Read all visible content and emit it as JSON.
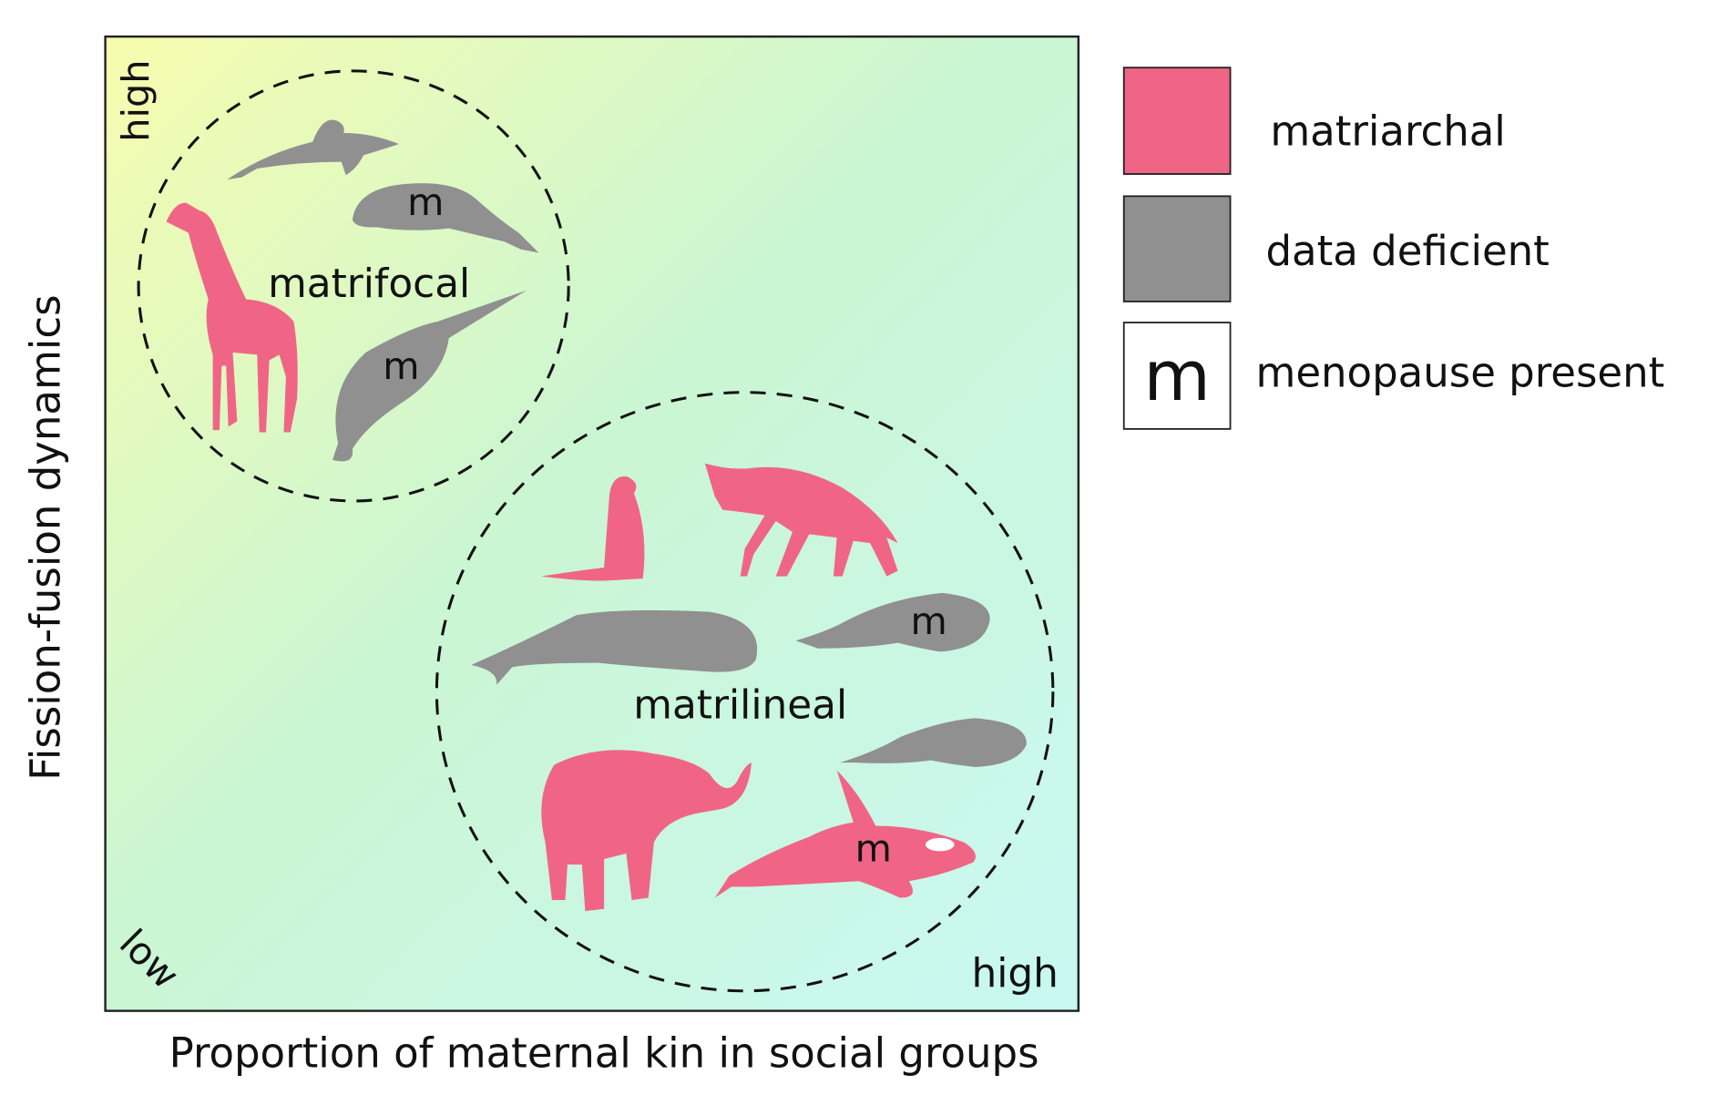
{
  "axes": {
    "x_label": "Proportion of maternal kin in social groups",
    "y_label": "Fission-fusion dynamics",
    "corner_low": "low",
    "x_high": "high",
    "y_high": "high"
  },
  "groups": [
    {
      "label": "matrifocal",
      "menopause_marks": [
        "m",
        "m"
      ]
    },
    {
      "label": "matrilineal",
      "menopause_marks": [
        "m",
        "m"
      ]
    }
  ],
  "legend": [
    {
      "label": "matriarchal",
      "color": "#f06585"
    },
    {
      "label": "data deficient",
      "color": "#909090"
    },
    {
      "symbol": "m",
      "label": "menopause present"
    }
  ]
}
